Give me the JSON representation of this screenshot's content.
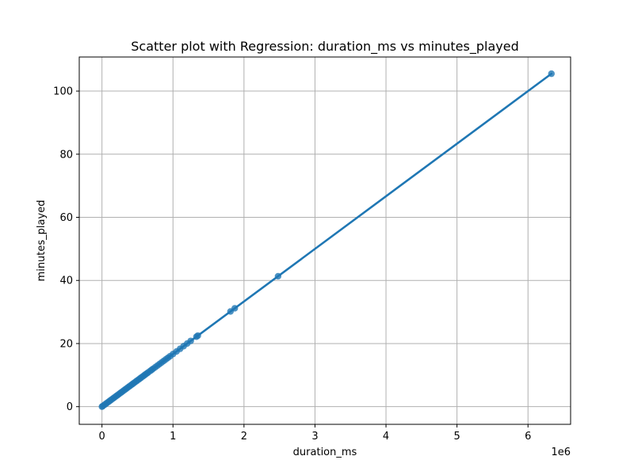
{
  "chart_data": {
    "type": "scatter",
    "title": "Scatter plot with Regression: duration_ms vs minutes_played",
    "xlabel": "duration_ms",
    "ylabel": "minutes_played",
    "x_offset_label": "1e6",
    "x_scale": 1000000,
    "xlim": [
      -0.32,
      6.6
    ],
    "ylim": [
      -5.6,
      110.8
    ],
    "x_ticks": [
      0,
      1,
      2,
      3,
      4,
      5,
      6
    ],
    "x_tick_labels": [
      "0",
      "1",
      "2",
      "3",
      "4",
      "5",
      "6"
    ],
    "y_ticks": [
      0,
      20,
      40,
      60,
      80,
      100
    ],
    "y_tick_labels": [
      "0",
      "20",
      "40",
      "60",
      "80",
      "100"
    ],
    "grid": true,
    "colors": {
      "point": "#1f77b4",
      "line": "#1f77b4",
      "grid": "#b0b0b0",
      "axis": "#000000"
    },
    "series": [
      {
        "name": "data points",
        "points": [
          [
            0.0,
            0.0
          ],
          [
            0.01,
            0.17
          ],
          [
            0.03,
            0.5
          ],
          [
            0.05,
            0.83
          ],
          [
            0.07,
            1.17
          ],
          [
            0.09,
            1.5
          ],
          [
            0.11,
            1.83
          ],
          [
            0.13,
            2.17
          ],
          [
            0.15,
            2.5
          ],
          [
            0.17,
            2.83
          ],
          [
            0.19,
            3.17
          ],
          [
            0.21,
            3.5
          ],
          [
            0.23,
            3.83
          ],
          [
            0.25,
            4.17
          ],
          [
            0.27,
            4.5
          ],
          [
            0.29,
            4.83
          ],
          [
            0.31,
            5.17
          ],
          [
            0.33,
            5.5
          ],
          [
            0.35,
            5.83
          ],
          [
            0.37,
            6.17
          ],
          [
            0.39,
            6.5
          ],
          [
            0.41,
            6.83
          ],
          [
            0.43,
            7.17
          ],
          [
            0.45,
            7.5
          ],
          [
            0.47,
            7.83
          ],
          [
            0.49,
            8.17
          ],
          [
            0.51,
            8.5
          ],
          [
            0.53,
            8.83
          ],
          [
            0.55,
            9.17
          ],
          [
            0.57,
            9.5
          ],
          [
            0.59,
            9.83
          ],
          [
            0.61,
            10.17
          ],
          [
            0.63,
            10.5
          ],
          [
            0.65,
            10.83
          ],
          [
            0.68,
            11.33
          ],
          [
            0.7,
            11.67
          ],
          [
            0.72,
            12.0
          ],
          [
            0.75,
            12.5
          ],
          [
            0.78,
            13.0
          ],
          [
            0.81,
            13.5
          ],
          [
            0.84,
            14.0
          ],
          [
            0.87,
            14.5
          ],
          [
            0.9,
            15.0
          ],
          [
            0.93,
            15.5
          ],
          [
            0.96,
            16.0
          ],
          [
            1.0,
            16.67
          ],
          [
            1.05,
            17.5
          ],
          [
            1.1,
            18.33
          ],
          [
            1.15,
            19.17
          ],
          [
            1.2,
            20.0
          ],
          [
            1.25,
            20.83
          ],
          [
            1.33,
            22.17
          ],
          [
            1.35,
            22.5
          ],
          [
            1.81,
            30.17
          ],
          [
            1.87,
            31.17
          ],
          [
            2.48,
            41.33
          ],
          [
            6.33,
            105.5
          ]
        ]
      }
    ],
    "regression": {
      "name": "regression line",
      "slope": 16.6667,
      "intercept": 0,
      "x_range": [
        0,
        6.33
      ]
    }
  }
}
